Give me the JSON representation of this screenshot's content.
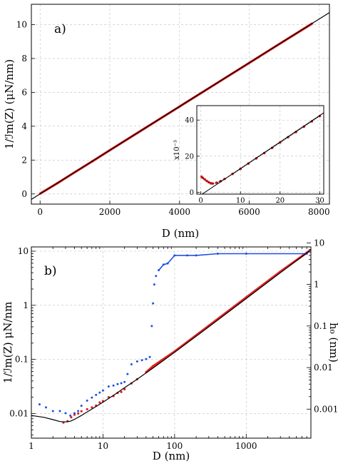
{
  "chart_data": [
    {
      "id": "a",
      "type": "line",
      "panel_label": "a)",
      "xlabel": "D (nm)",
      "ylabel": "1/ℐm(Z) (μN/nm)",
      "xlim": [
        -250,
        8300
      ],
      "ylim": [
        -0.6,
        11.2
      ],
      "xticks": [
        0,
        2000,
        4000,
        6000,
        8000
      ],
      "yticks": [
        0,
        2,
        4,
        6,
        8,
        10
      ],
      "grid": true,
      "series": [
        {
          "role": "data",
          "color": "#e02020",
          "x": [
            0,
            500,
            1000,
            1500,
            2000,
            3000,
            4000,
            5000,
            6000,
            7000,
            7800
          ],
          "y": [
            0.02,
            0.64,
            1.29,
            1.93,
            2.58,
            3.87,
            5.16,
            6.45,
            7.74,
            9.03,
            10.06
          ]
        },
        {
          "role": "fit",
          "color": "#000000",
          "x": [
            -250,
            8300
          ],
          "y": [
            -0.32,
            10.71
          ]
        }
      ],
      "inset": {
        "xlim": [
          -1,
          31
        ],
        "ylim": [
          -1,
          48
        ],
        "xticks": [
          0,
          10,
          20,
          30
        ],
        "yticks": [
          0,
          20,
          40
        ],
        "ylabel": "x10⁻³",
        "series": [
          {
            "role": "data",
            "color": "#e02020",
            "x": [
              0.2,
              0.5,
              1.0,
              1.5,
              2.0,
              2.5,
              3.0,
              4.0,
              5.0,
              6.0,
              8.0,
              10,
              12,
              14,
              16,
              18,
              20,
              22,
              24,
              26,
              28,
              30
            ],
            "y": [
              8.6,
              8.0,
              7.2,
              6.3,
              5.6,
              5.0,
              4.9,
              5.3,
              6.2,
              7.4,
              10.2,
              13.0,
              15.9,
              18.8,
              21.7,
              24.6,
              27.6,
              30.5,
              33.4,
              36.3,
              39.3,
              42.2
            ]
          },
          {
            "role": "data-tail",
            "color": "#000000",
            "x": [
              0.2,
              1.0,
              2.0,
              3.0,
              4.0,
              6.0,
              8.0,
              10,
              15,
              20,
              25,
              30
            ],
            "y": [
              8.4,
              7.0,
              5.5,
              4.8,
              5.2,
              7.3,
              10.1,
              12.9,
              20.3,
              27.5,
              34.9,
              42.2
            ]
          },
          {
            "role": "fit",
            "color": "#000000",
            "x": [
              0,
              31
            ],
            "y": [
              -1.5,
              44.0
            ]
          }
        ]
      }
    },
    {
      "id": "b",
      "type": "scatter",
      "panel_label": "b)",
      "xlabel": "D (nm)",
      "ylabel": "1/ℐm(Z) μN/nm",
      "y2label": "h₀ (nm)",
      "xscale": "log",
      "yscale": "log",
      "xlim": [
        1,
        8000
      ],
      "ylim": [
        0.0035,
        12
      ],
      "y2lim": [
        0.0002,
        8
      ],
      "xticks": [
        1,
        10,
        100,
        1000
      ],
      "yticks": [
        0.01,
        0.1,
        1,
        10
      ],
      "y2ticks": [
        0.001,
        0.01,
        0.1,
        1,
        10
      ],
      "grid": true,
      "series": [
        {
          "role": "stiffness",
          "color": "#e02020",
          "x": [
            2.8,
            3.2,
            3.6,
            4.0,
            4.5,
            5,
            6,
            7,
            8,
            9,
            10,
            12,
            14,
            16,
            18,
            20,
            25,
            30,
            40,
            50,
            100,
            300,
            1000,
            3000,
            7500
          ],
          "y": [
            0.0068,
            0.0072,
            0.0085,
            0.0095,
            0.01,
            0.011,
            0.012,
            0.013,
            0.014,
            0.016,
            0.017,
            0.02,
            0.021,
            0.024,
            0.025,
            0.028,
            0.036,
            0.043,
            0.058,
            0.075,
            0.14,
            0.42,
            1.4,
            4.2,
            10.0
          ]
        },
        {
          "role": "h0",
          "color": "#2050e0",
          "x": [
            1.3,
            1.6,
            2.0,
            2.5,
            3.0,
            3.5,
            4.0,
            4.5,
            5,
            6,
            7,
            8,
            9,
            10,
            12,
            14,
            16,
            18,
            20,
            22,
            25,
            30,
            35,
            40,
            45,
            48,
            50,
            52,
            55,
            60,
            70,
            80,
            100,
            150,
            200,
            400,
            1000,
            7000
          ],
          "y": [
            0.0013,
            0.0011,
            0.0009,
            0.0009,
            0.0008,
            0.0007,
            0.0008,
            0.0009,
            0.0012,
            0.0016,
            0.0019,
            0.0022,
            0.0025,
            0.0028,
            0.0035,
            0.0037,
            0.004,
            0.0042,
            0.0045,
            0.007,
            0.012,
            0.014,
            0.015,
            0.016,
            0.018,
            0.1,
            0.35,
            1.0,
            1.6,
            2.2,
            3.0,
            3.2,
            5.0,
            5.0,
            5.0,
            5.5,
            5.5,
            5.5
          ]
        },
        {
          "role": "fit",
          "color": "#000000",
          "x": [
            1,
            1.5,
            2,
            2.5,
            3,
            3.5,
            4,
            5,
            6,
            8,
            10,
            15,
            20,
            30,
            50,
            100,
            300,
            1000,
            3000,
            8000
          ],
          "y": [
            0.0092,
            0.0085,
            0.0077,
            0.0071,
            0.007,
            0.0072,
            0.0078,
            0.0092,
            0.0107,
            0.0135,
            0.0162,
            0.023,
            0.03,
            0.043,
            0.069,
            0.135,
            0.4,
            1.33,
            4.0,
            10.6
          ]
        }
      ]
    }
  ]
}
